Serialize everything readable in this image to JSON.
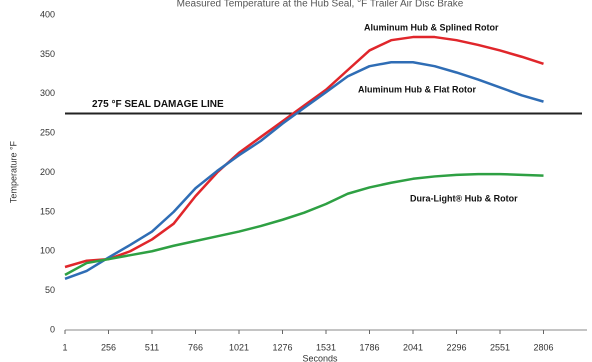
{
  "chart_data": {
    "type": "line",
    "title": "Measured Temperature at the Hub Seal, °F Trailer Air Disc Brake",
    "x_label": "Seconds",
    "y_label": "Temperature °F",
    "x": [
      1,
      128,
      256,
      383,
      511,
      638,
      766,
      893,
      1021,
      1148,
      1276,
      1403,
      1531,
      1658,
      1786,
      1913,
      2041,
      2168,
      2296,
      2423,
      2551,
      2678,
      2806
    ],
    "series": [
      {
        "name": "Aluminum Hub & Splined Rotor",
        "color": "#e0262b",
        "values": [
          80,
          88,
          90,
          100,
          115,
          135,
          170,
          200,
          225,
          245,
          265,
          285,
          305,
          330,
          355,
          368,
          372,
          372,
          368,
          362,
          355,
          347,
          338
        ]
      },
      {
        "name": "Aluminum Hub & Flat Rotor",
        "color": "#2f6db5",
        "values": [
          65,
          75,
          92,
          108,
          125,
          150,
          180,
          202,
          222,
          240,
          262,
          282,
          302,
          322,
          335,
          340,
          340,
          335,
          327,
          318,
          308,
          298,
          290
        ]
      },
      {
        "name": "Dura-Light® Hub & Rotor",
        "color": "#2ea043",
        "values": [
          70,
          85,
          90,
          95,
          100,
          107,
          113,
          119,
          125,
          132,
          140,
          149,
          160,
          173,
          181,
          187,
          192,
          195,
          197,
          198,
          198,
          197,
          196
        ]
      }
    ],
    "reference_line": {
      "value": 275,
      "label": "275 °F SEAL DAMAGE LINE",
      "color": "#222222"
    },
    "xlim": [
      1,
      3061
    ],
    "ylim": [
      0,
      400
    ],
    "xticks": [
      1,
      256,
      511,
      766,
      1021,
      1276,
      1531,
      1786,
      2041,
      2296,
      2551,
      2806
    ],
    "yticks": [
      0,
      50,
      100,
      150,
      200,
      250,
      300,
      350,
      400
    ],
    "grid": false
  }
}
